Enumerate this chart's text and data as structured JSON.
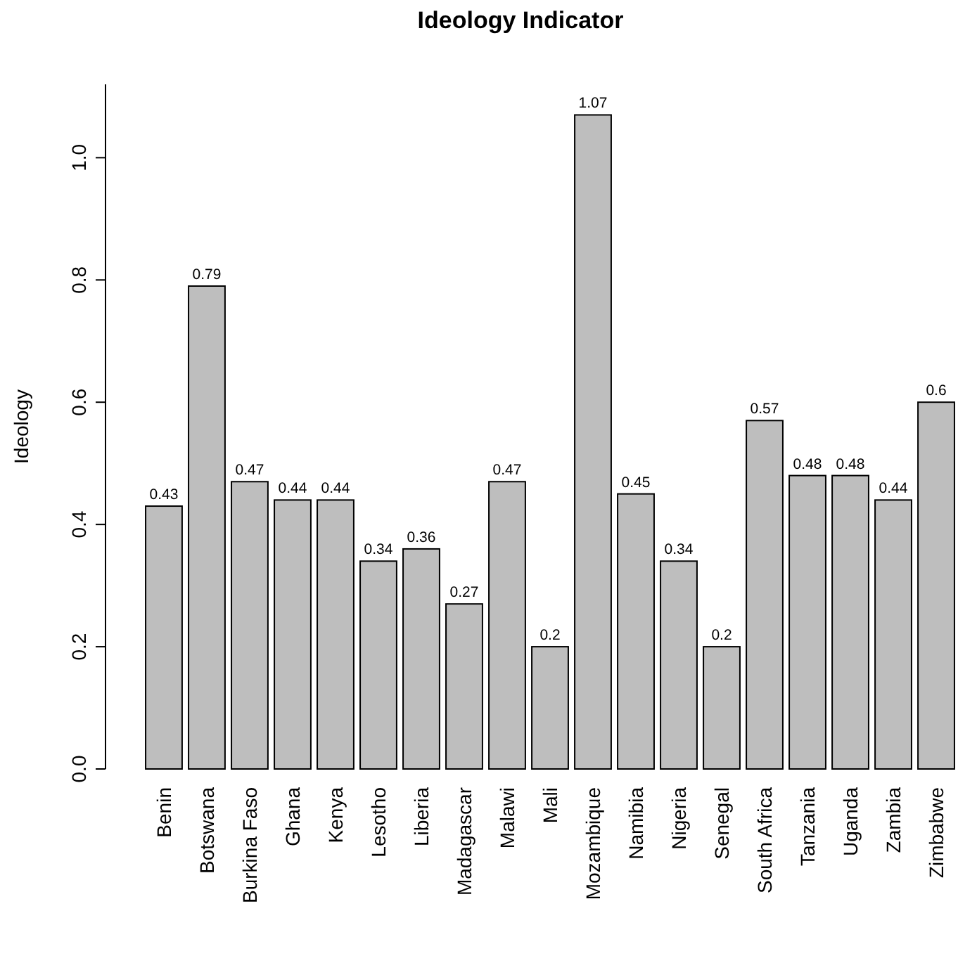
{
  "chart_data": {
    "type": "bar",
    "title": "Ideology Indicator",
    "ylabel": "Ideology",
    "categories": [
      "Benin",
      "Botswana",
      "Burkina Faso",
      "Ghana",
      "Kenya",
      "Lesotho",
      "Liberia",
      "Madagascar",
      "Malawi",
      "Mali",
      "Mozambique",
      "Namibia",
      "Nigeria",
      "Senegal",
      "South Africa",
      "Tanzania",
      "Uganda",
      "Zambia",
      "Zimbabwe"
    ],
    "values": [
      0.43,
      0.79,
      0.47,
      0.44,
      0.44,
      0.34,
      0.36,
      0.27,
      0.47,
      0.2,
      1.07,
      0.45,
      0.34,
      0.2,
      0.57,
      0.48,
      0.48,
      0.44,
      0.6
    ],
    "color": "#bebebe",
    "ylim": [
      0,
      1.12
    ],
    "yticks": [
      {
        "value": 0,
        "label": "0.0"
      },
      0.2,
      0.4,
      0.6,
      0.8,
      {
        "value": 1,
        "label": "1.0"
      }
    ],
    "data_labels": true,
    "grid": false
  }
}
